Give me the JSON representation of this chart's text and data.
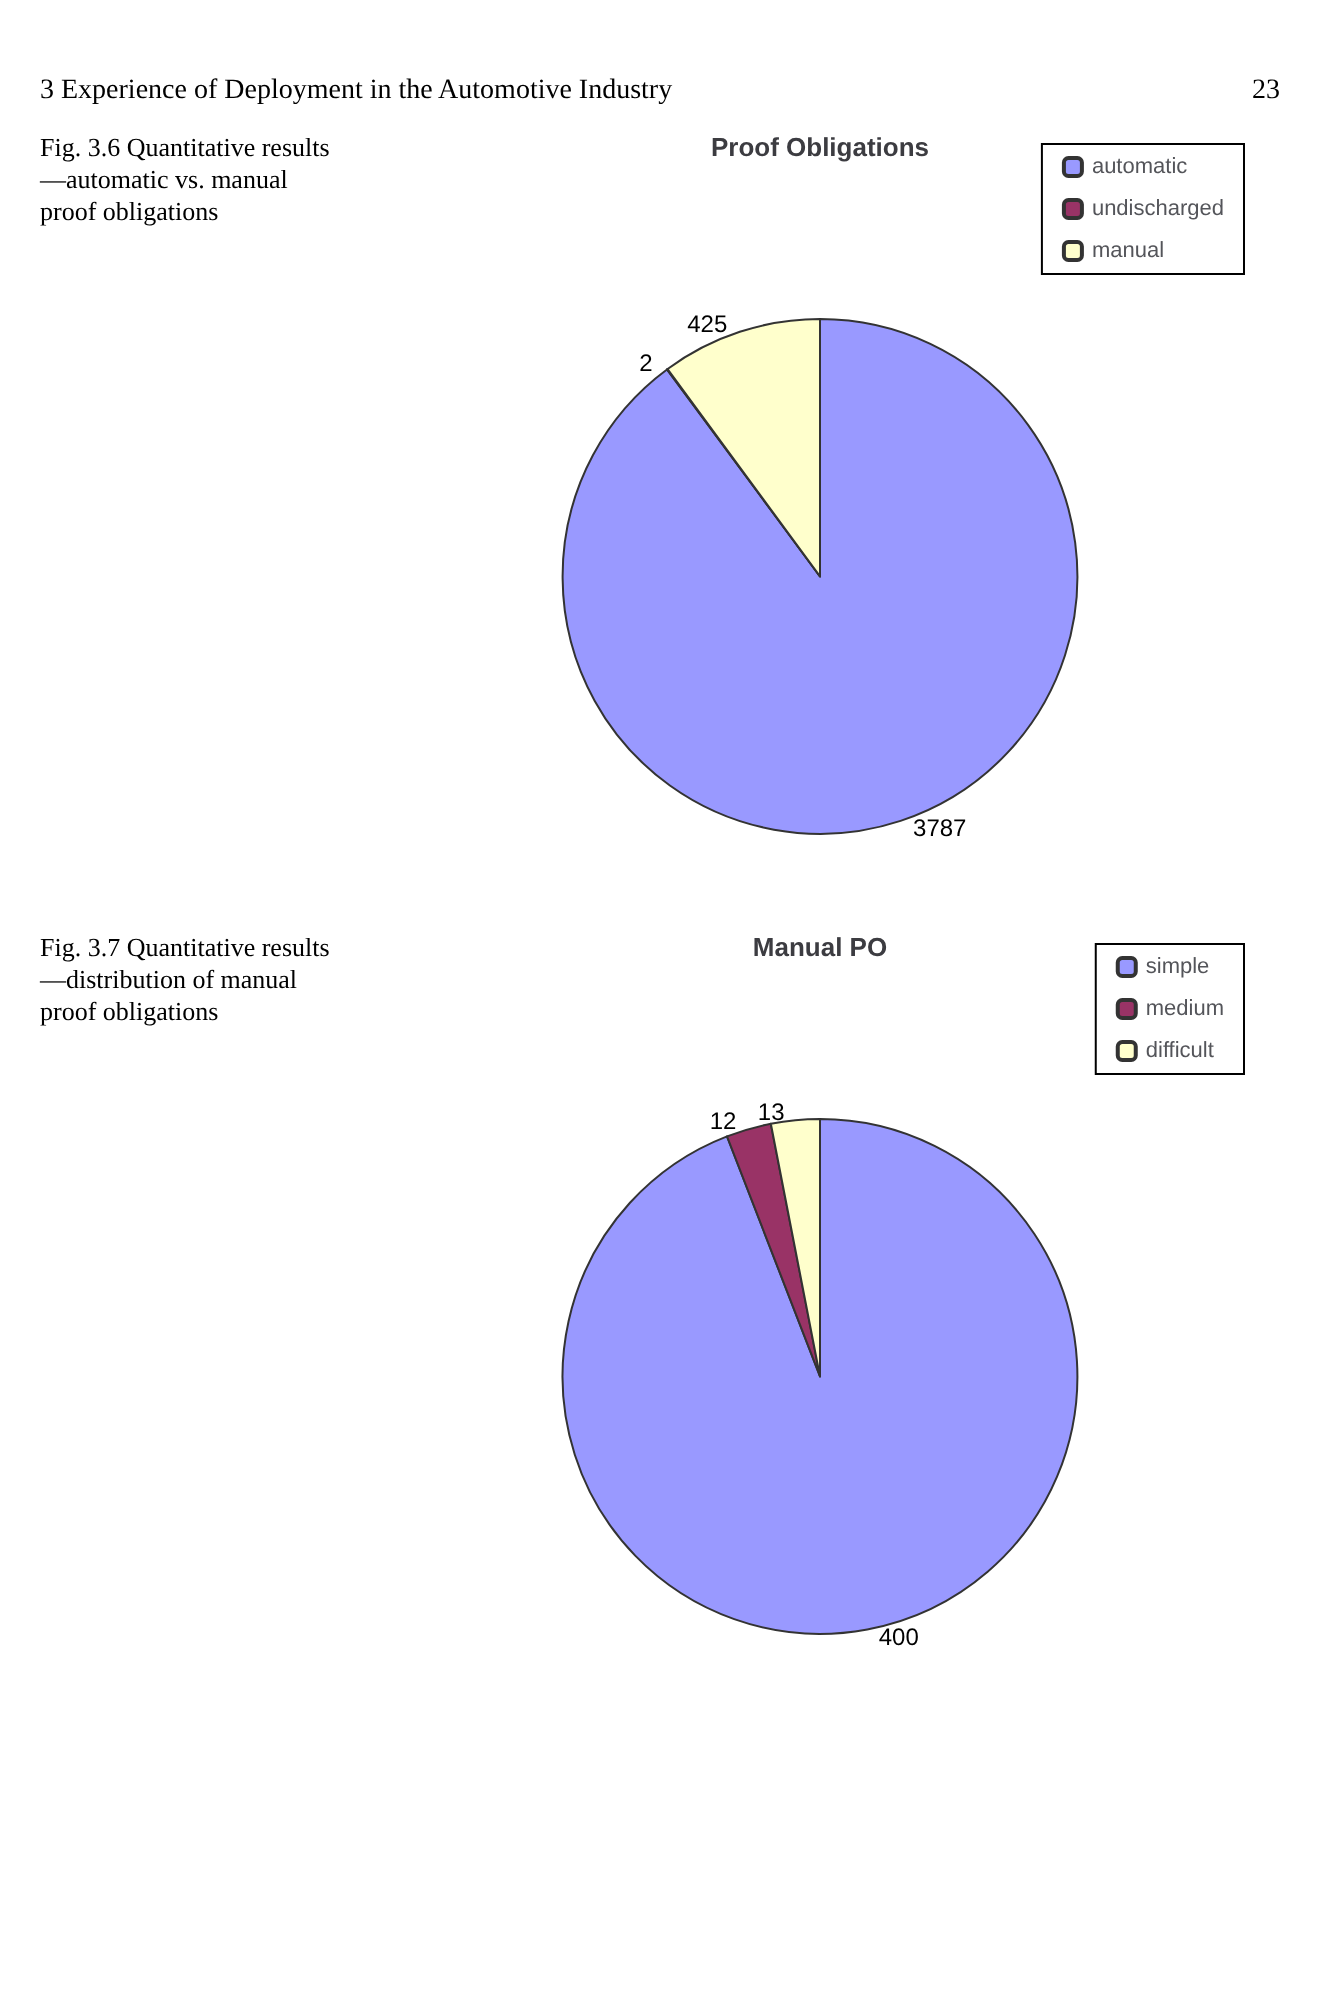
{
  "chart_data": [
    {
      "type": "pie",
      "title": "Proof Obligations",
      "categories": [
        "automatic",
        "undischarged",
        "manual"
      ],
      "values": [
        3787,
        2,
        425
      ],
      "colors": [
        "#9999ff",
        "#993366",
        "#ffffcc"
      ],
      "data_labels": true,
      "legend": "top right",
      "annotations": [
        "3 Experience of Deployment in the Automotive Industry",
        "23",
        "Fig. 3.6 Quantitative results—automatic vs. manual proof obligations"
      ]
    },
    {
      "type": "pie",
      "title": "Manual PO",
      "categories": [
        "simple",
        "medium",
        "difficult"
      ],
      "values": [
        400,
        12,
        13
      ],
      "colors": [
        "#9999ff",
        "#993366",
        "#ffffcc"
      ],
      "data_labels": true,
      "legend": "top right",
      "annotations": [
        "Fig. 3.7 Quantitative results—distribution of manual proof obligations"
      ]
    }
  ]
}
